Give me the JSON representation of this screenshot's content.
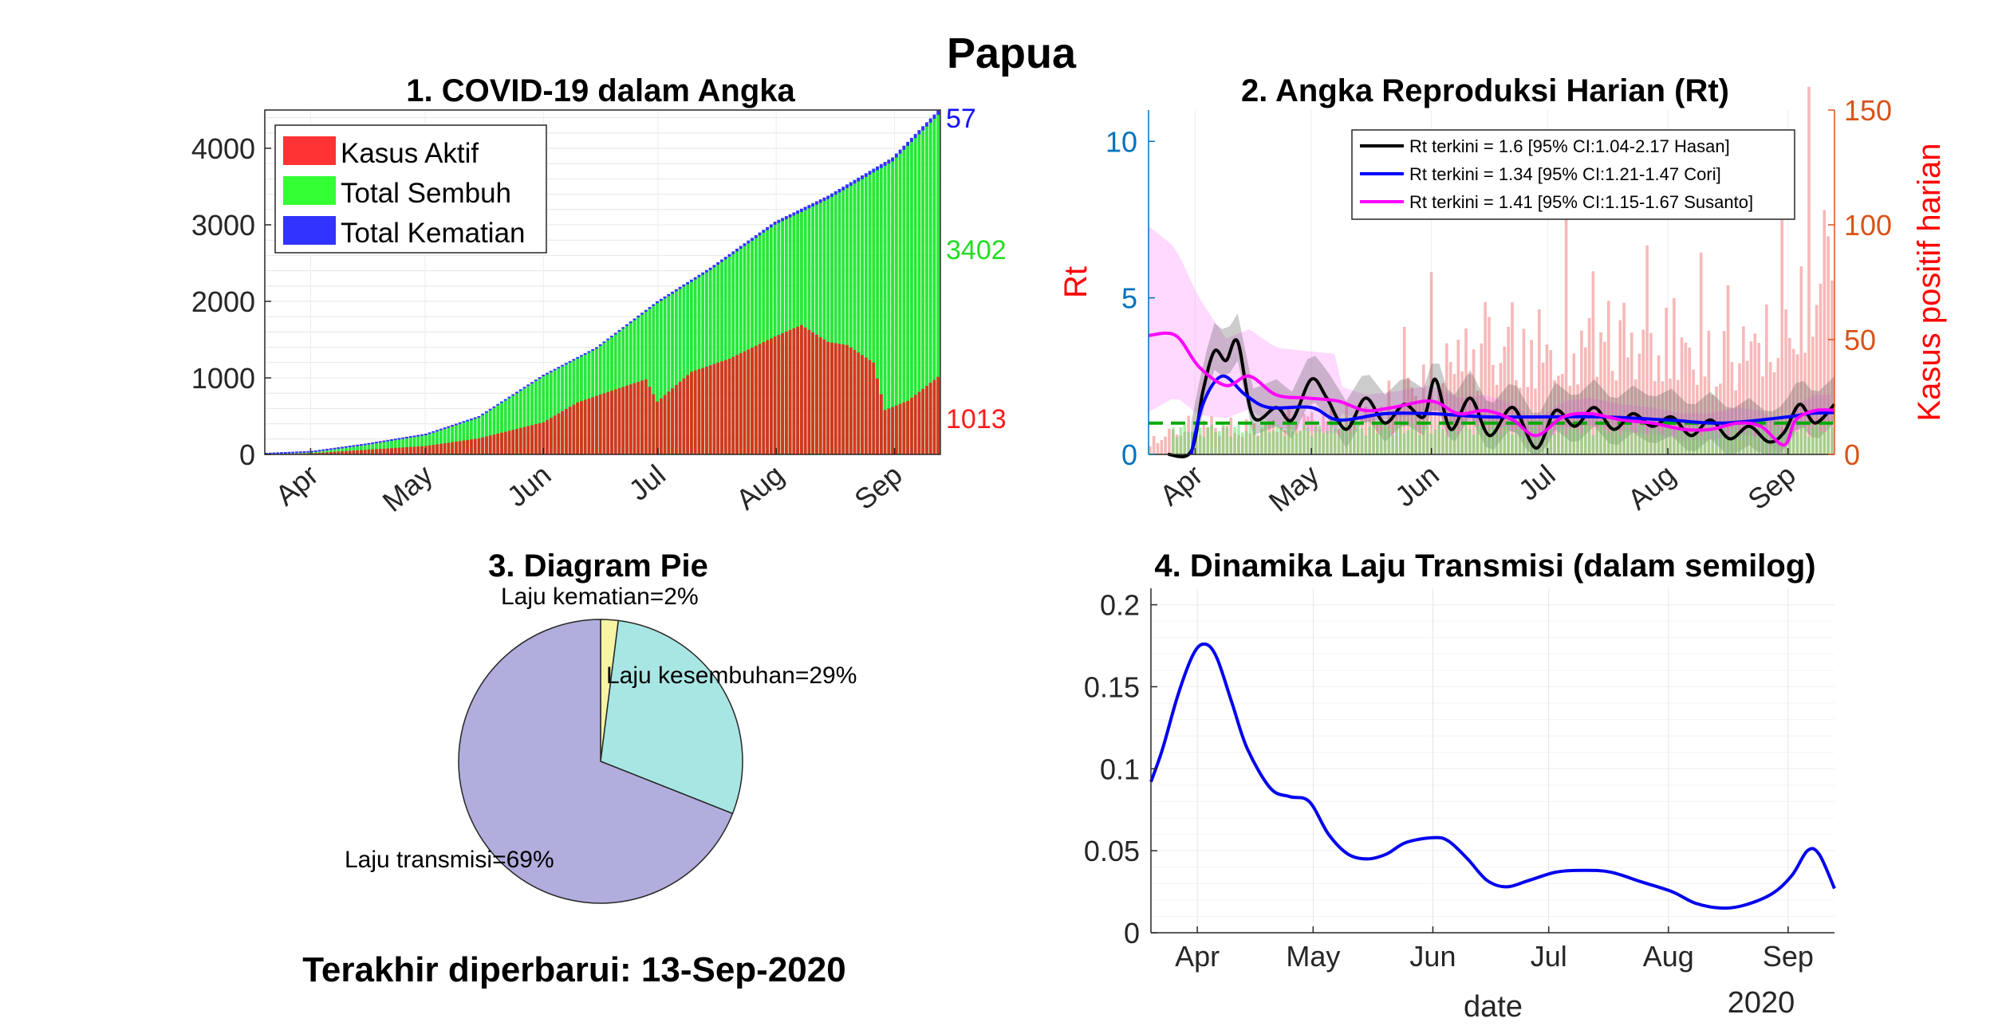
{
  "page": {
    "title": "Papua",
    "last_updated": "Terakhir diperbarui: 13-Sep-2020"
  },
  "chart_data": [
    {
      "id": "panel1",
      "type": "bar",
      "stacked": true,
      "title": "1. COVID-19 dalam Angka",
      "xlabel": "",
      "ylabel": "",
      "x_start": "2020-03-20",
      "x_end": "2020-09-13",
      "month_ticks": [
        "Apr",
        "May",
        "Jun",
        "Jul",
        "Aug",
        "Sep"
      ],
      "month_tick_dates": [
        "2020-04-01",
        "2020-05-01",
        "2020-06-01",
        "2020-07-01",
        "2020-08-01",
        "2020-09-01"
      ],
      "ylim": [
        0,
        4500
      ],
      "yticks": [
        0,
        1000,
        2000,
        3000,
        4000
      ],
      "legend": {
        "position": "top-left",
        "entries": [
          "Kasus Aktif",
          "Total Sembuh",
          "Total Kematian"
        ]
      },
      "colors": {
        "active": "#d1381f",
        "recovered": "#27e83a",
        "deaths": "#3232ff"
      },
      "end_labels": {
        "deaths": "57",
        "recovered": "3402",
        "active": "1013"
      },
      "end_label_colors": {
        "deaths": "#1010ff",
        "recovered": "#22dd22",
        "active": "#ff1a1a"
      },
      "series_points": {
        "active": [
          [
            "2020-03-20",
            0
          ],
          [
            "2020-04-01",
            15
          ],
          [
            "2020-04-15",
            60
          ],
          [
            "2020-05-01",
            110
          ],
          [
            "2020-05-15",
            210
          ],
          [
            "2020-06-01",
            420
          ],
          [
            "2020-06-10",
            680
          ],
          [
            "2020-06-20",
            850
          ],
          [
            "2020-06-28",
            980
          ],
          [
            "2020-07-01",
            690
          ],
          [
            "2020-07-10",
            1080
          ],
          [
            "2020-07-20",
            1250
          ],
          [
            "2020-08-01",
            1540
          ],
          [
            "2020-08-08",
            1690
          ],
          [
            "2020-08-15",
            1470
          ],
          [
            "2020-08-20",
            1430
          ],
          [
            "2020-08-27",
            1200
          ],
          [
            "2020-08-30",
            580
          ],
          [
            "2020-09-05",
            700
          ],
          [
            "2020-09-13",
            1013
          ]
        ],
        "total": [
          [
            "2020-03-20",
            0
          ],
          [
            "2020-04-01",
            25
          ],
          [
            "2020-04-15",
            120
          ],
          [
            "2020-05-01",
            250
          ],
          [
            "2020-05-15",
            480
          ],
          [
            "2020-06-01",
            1020
          ],
          [
            "2020-06-15",
            1380
          ],
          [
            "2020-07-01",
            1980
          ],
          [
            "2020-07-15",
            2420
          ],
          [
            "2020-08-01",
            3020
          ],
          [
            "2020-08-15",
            3360
          ],
          [
            "2020-09-01",
            3860
          ],
          [
            "2020-09-13",
            4472
          ]
        ],
        "deaths": [
          [
            "2020-03-20",
            0
          ],
          [
            "2020-05-01",
            5
          ],
          [
            "2020-06-01",
            15
          ],
          [
            "2020-07-01",
            25
          ],
          [
            "2020-08-01",
            40
          ],
          [
            "2020-09-13",
            57
          ]
        ]
      }
    },
    {
      "id": "panel2",
      "type": "line",
      "title": "2. Angka Reproduksi Harian (Rt)",
      "ylabel": "Rt",
      "y2label": "Kasus positif harian",
      "ylim": [
        0,
        11
      ],
      "yticks": [
        0,
        5,
        10
      ],
      "y2lim": [
        0,
        150
      ],
      "y2ticks": [
        0,
        50,
        100,
        150
      ],
      "x_start": "2020-03-20",
      "x_end": "2020-09-13",
      "month_ticks": [
        "Apr",
        "May",
        "Jun",
        "Jul",
        "Aug",
        "Sep"
      ],
      "month_tick_dates": [
        "2020-04-01",
        "2020-05-01",
        "2020-06-01",
        "2020-07-01",
        "2020-08-01",
        "2020-09-01"
      ],
      "threshold": 1,
      "legend": {
        "position": "top-right",
        "entries": [
          "Rt terkini = 1.6 [95% CI:1.04-2.17 Hasan]",
          "Rt terkini = 1.34 [95% CI:1.21-1.47 Cori]",
          "Rt terkini = 1.41 [95% CI:1.15-1.67 Susanto]"
        ]
      },
      "colors": {
        "hasan": "#000000",
        "cori": "#0000ff",
        "susanto": "#ff00ff",
        "cases": "#f4a0a0",
        "threshold": "#00aa00",
        "rt_axis": "#0072bd",
        "cases_axis": "#d95319"
      },
      "series": [
        {
          "name": "Hasan",
          "points": [
            [
              "2020-03-25",
              0
            ],
            [
              "2020-03-31",
              0.1
            ],
            [
              "2020-04-03",
              2.0
            ],
            [
              "2020-04-06",
              3.3
            ],
            [
              "2020-04-09",
              3.0
            ],
            [
              "2020-04-12",
              3.6
            ],
            [
              "2020-04-16",
              1.2
            ],
            [
              "2020-04-22",
              1.5
            ],
            [
              "2020-04-26",
              1.1
            ],
            [
              "2020-05-01",
              2.4
            ],
            [
              "2020-05-05",
              1.8
            ],
            [
              "2020-05-10",
              0.8
            ],
            [
              "2020-05-15",
              1.8
            ],
            [
              "2020-05-20",
              1.0
            ],
            [
              "2020-05-25",
              1.6
            ],
            [
              "2020-05-30",
              1.2
            ],
            [
              "2020-06-02",
              2.4
            ],
            [
              "2020-06-06",
              0.8
            ],
            [
              "2020-06-11",
              1.8
            ],
            [
              "2020-06-16",
              0.6
            ],
            [
              "2020-06-22",
              1.5
            ],
            [
              "2020-06-28",
              0.2
            ],
            [
              "2020-07-03",
              1.4
            ],
            [
              "2020-07-08",
              0.9
            ],
            [
              "2020-07-13",
              1.5
            ],
            [
              "2020-07-18",
              0.8
            ],
            [
              "2020-07-23",
              1.3
            ],
            [
              "2020-07-28",
              0.9
            ],
            [
              "2020-08-02",
              1.2
            ],
            [
              "2020-08-07",
              0.6
            ],
            [
              "2020-08-12",
              1.1
            ],
            [
              "2020-08-17",
              0.5
            ],
            [
              "2020-08-22",
              0.9
            ],
            [
              "2020-08-27",
              0.4
            ],
            [
              "2020-08-31",
              0.7
            ],
            [
              "2020-09-04",
              1.6
            ],
            [
              "2020-09-08",
              1.0
            ],
            [
              "2020-09-13",
              1.6
            ]
          ]
        },
        {
          "name": "Cori",
          "points": [
            [
              "2020-03-31",
              0
            ],
            [
              "2020-04-03",
              1.6
            ],
            [
              "2020-04-08",
              2.5
            ],
            [
              "2020-04-14",
              1.9
            ],
            [
              "2020-04-20",
              1.5
            ],
            [
              "2020-05-01",
              1.5
            ],
            [
              "2020-05-08",
              1.1
            ],
            [
              "2020-05-20",
              1.3
            ],
            [
              "2020-06-01",
              1.3
            ],
            [
              "2020-06-15",
              1.2
            ],
            [
              "2020-07-01",
              1.2
            ],
            [
              "2020-07-15",
              1.2
            ],
            [
              "2020-08-01",
              1.1
            ],
            [
              "2020-08-15",
              1.0
            ],
            [
              "2020-09-01",
              1.2
            ],
            [
              "2020-09-06",
              1.3
            ],
            [
              "2020-09-13",
              1.34
            ]
          ]
        },
        {
          "name": "Susanto",
          "points": [
            [
              "2020-03-20",
              3.8
            ],
            [
              "2020-03-27",
              3.8
            ],
            [
              "2020-04-02",
              2.8
            ],
            [
              "2020-04-09",
              2.2
            ],
            [
              "2020-04-15",
              2.5
            ],
            [
              "2020-04-22",
              1.9
            ],
            [
              "2020-04-30",
              1.8
            ],
            [
              "2020-05-08",
              1.7
            ],
            [
              "2020-05-15",
              1.4
            ],
            [
              "2020-05-22",
              1.5
            ],
            [
              "2020-06-01",
              1.7
            ],
            [
              "2020-06-08",
              1.3
            ],
            [
              "2020-06-15",
              1.4
            ],
            [
              "2020-06-22",
              1.1
            ],
            [
              "2020-06-28",
              0.6
            ],
            [
              "2020-07-05",
              1.2
            ],
            [
              "2020-07-12",
              1.3
            ],
            [
              "2020-07-20",
              1.1
            ],
            [
              "2020-07-28",
              1.0
            ],
            [
              "2020-08-05",
              0.8
            ],
            [
              "2020-08-12",
              0.8
            ],
            [
              "2020-08-19",
              1.0
            ],
            [
              "2020-08-25",
              0.9
            ],
            [
              "2020-08-31",
              0.3
            ],
            [
              "2020-09-03",
              1.1
            ],
            [
              "2020-09-08",
              1.4
            ],
            [
              "2020-09-13",
              1.41
            ]
          ]
        }
      ],
      "daily_cases_points": [
        [
          "2020-03-20",
          5
        ],
        [
          "2020-04-01",
          12
        ],
        [
          "2020-04-15",
          10
        ],
        [
          "2020-05-01",
          14
        ],
        [
          "2020-05-15",
          15
        ],
        [
          "2020-06-01",
          30
        ],
        [
          "2020-06-15",
          40
        ],
        [
          "2020-07-01",
          35
        ],
        [
          "2020-07-15",
          45
        ],
        [
          "2020-08-01",
          40
        ],
        [
          "2020-08-15",
          35
        ],
        [
          "2020-09-01",
          45
        ],
        [
          "2020-09-13",
          80
        ]
      ]
    },
    {
      "id": "panel3",
      "type": "pie",
      "title": "3. Diagram Pie",
      "slices": [
        {
          "label": "Laju kematian=2%",
          "value": 2,
          "color": "#f7f5a3"
        },
        {
          "label": "Laju kesembuhan=29%",
          "value": 29,
          "color": "#a7e6e3"
        },
        {
          "label": "Laju transmisi=69%",
          "value": 69,
          "color": "#b1addc"
        }
      ]
    },
    {
      "id": "panel4",
      "type": "line",
      "title": "4. Dinamika Laju Transmisi (dalam semilog)",
      "xlabel": "date",
      "year_label": "2020",
      "ylim": [
        0,
        0.21
      ],
      "yticks": [
        0,
        0.05,
        0.1,
        0.15,
        0.2
      ],
      "ytick_labels": [
        "0",
        "0.05",
        "0.1",
        "0.15",
        "0.2"
      ],
      "x_start": "2020-03-20",
      "x_end": "2020-09-13",
      "month_ticks": [
        "Apr",
        "May",
        "Jun",
        "Jul",
        "Aug",
        "Sep"
      ],
      "month_tick_dates": [
        "2020-04-01",
        "2020-05-01",
        "2020-06-01",
        "2020-07-01",
        "2020-08-01",
        "2020-09-01"
      ],
      "color": "#0000ee",
      "series": [
        {
          "name": "",
          "points": [
            [
              "2020-03-20",
              0.092
            ],
            [
              "2020-03-23",
              0.112
            ],
            [
              "2020-03-27",
              0.145
            ],
            [
              "2020-03-31",
              0.17
            ],
            [
              "2020-04-03",
              0.176
            ],
            [
              "2020-04-06",
              0.168
            ],
            [
              "2020-04-10",
              0.14
            ],
            [
              "2020-04-14",
              0.112
            ],
            [
              "2020-04-20",
              0.088
            ],
            [
              "2020-04-25",
              0.083
            ],
            [
              "2020-04-30",
              0.08
            ],
            [
              "2020-05-05",
              0.06
            ],
            [
              "2020-05-10",
              0.048
            ],
            [
              "2020-05-15",
              0.045
            ],
            [
              "2020-05-20",
              0.048
            ],
            [
              "2020-05-25",
              0.055
            ],
            [
              "2020-06-01",
              0.058
            ],
            [
              "2020-06-05",
              0.056
            ],
            [
              "2020-06-10",
              0.045
            ],
            [
              "2020-06-15",
              0.032
            ],
            [
              "2020-06-20",
              0.028
            ],
            [
              "2020-06-26",
              0.032
            ],
            [
              "2020-07-03",
              0.037
            ],
            [
              "2020-07-10",
              0.038
            ],
            [
              "2020-07-17",
              0.037
            ],
            [
              "2020-07-25",
              0.031
            ],
            [
              "2020-08-02",
              0.025
            ],
            [
              "2020-08-08",
              0.018
            ],
            [
              "2020-08-15",
              0.015
            ],
            [
              "2020-08-21",
              0.017
            ],
            [
              "2020-08-28",
              0.024
            ],
            [
              "2020-09-02",
              0.035
            ],
            [
              "2020-09-06",
              0.05
            ],
            [
              "2020-09-09",
              0.048
            ],
            [
              "2020-09-13",
              0.027
            ]
          ]
        }
      ]
    }
  ]
}
